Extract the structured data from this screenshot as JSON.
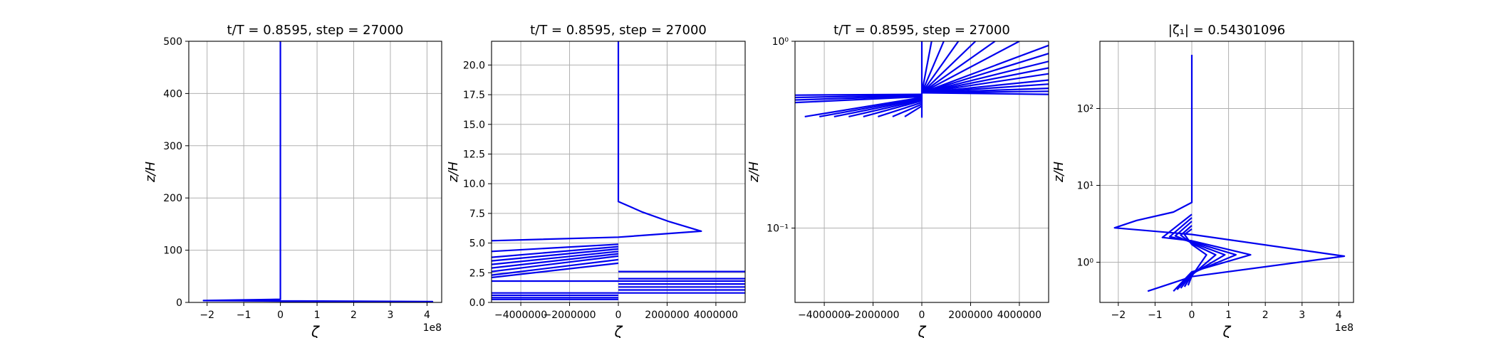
{
  "colors": {
    "line": "#0000ee",
    "grid": "#b0b0b0",
    "axis": "#000000"
  },
  "chart_data": [
    {
      "type": "line",
      "title": "t/T = 0.8595, step = 27000",
      "xlabel": "ζ",
      "ylabel": "z/H",
      "xscale": "linear",
      "yscale": "linear",
      "xlim": [
        -250000000.0,
        440000000.0
      ],
      "ylim": [
        0,
        500
      ],
      "xticks": [
        -200000000.0,
        -100000000.0,
        0,
        100000000.0,
        200000000.0,
        300000000.0,
        400000000.0
      ],
      "xtick_labels": [
        "−2",
        "−1",
        "0",
        "1",
        "2",
        "3",
        "4"
      ],
      "yticks": [
        0,
        100,
        200,
        300,
        400,
        500
      ],
      "ytick_labels": [
        "0",
        "100",
        "200",
        "300",
        "400",
        "500"
      ],
      "offset_text": "1e8",
      "grid": true,
      "series": [
        {
          "x": [
            0,
            0,
            -210000000.0,
            0,
            415000000.0,
            0
          ],
          "y": [
            500,
            6,
            3.5,
            3,
            1.5,
            0.5
          ]
        },
        {
          "x": [
            0,
            -100000000.0,
            0,
            150000000.0,
            0
          ],
          "y": [
            4,
            3.2,
            2.6,
            1.6,
            0.4
          ]
        }
      ]
    },
    {
      "type": "line",
      "title": "t/T = 0.8595, step = 27000",
      "xlabel": "ζ",
      "ylabel": "z/H",
      "xscale": "linear",
      "yscale": "linear",
      "xlim": [
        -5200000,
        5200000
      ],
      "ylim": [
        0,
        22
      ],
      "xticks": [
        -4000000,
        -2000000,
        0,
        2000000,
        4000000
      ],
      "xtick_labels": [
        "−4000000",
        "−2000000",
        "0",
        "2000000",
        "4000000"
      ],
      "yticks": [
        0,
        2.5,
        5,
        7.5,
        10,
        12.5,
        15,
        17.5,
        20
      ],
      "ytick_labels": [
        "0.0",
        "2.5",
        "5.0",
        "7.5",
        "10.0",
        "12.5",
        "15.0",
        "17.5",
        "20.0"
      ],
      "grid": true,
      "series": [
        {
          "x": [
            0,
            0,
            0,
            0,
            1000000,
            2100000,
            3400000,
            0,
            -5200000
          ],
          "y": [
            22,
            10,
            9,
            8.5,
            7.6,
            6.8,
            6.0,
            5.5,
            5.2
          ]
        },
        {
          "x": [
            0,
            -5200000
          ],
          "y": [
            4.9,
            4.3
          ]
        },
        {
          "x": [
            0,
            -5200000
          ],
          "y": [
            4.7,
            3.8
          ]
        },
        {
          "x": [
            0,
            -5200000
          ],
          "y": [
            4.5,
            3.5
          ]
        },
        {
          "x": [
            0,
            -5200000
          ],
          "y": [
            4.3,
            3.2
          ]
        },
        {
          "x": [
            0,
            -5200000
          ],
          "y": [
            4.1,
            2.9
          ]
        },
        {
          "x": [
            0,
            -5200000
          ],
          "y": [
            3.9,
            2.6
          ]
        },
        {
          "x": [
            0,
            -5200000
          ],
          "y": [
            3.6,
            2.3
          ]
        },
        {
          "x": [
            0,
            -5200000
          ],
          "y": [
            3.3,
            2.1
          ]
        },
        {
          "x": [
            0,
            5200000
          ],
          "y": [
            2.6,
            2.6
          ]
        },
        {
          "x": [
            0,
            5200000
          ],
          "y": [
            2.0,
            2.0
          ]
        },
        {
          "x": [
            -5200000,
            5200000
          ],
          "y": [
            1.8,
            1.8
          ]
        },
        {
          "x": [
            0,
            5200000
          ],
          "y": [
            1.55,
            1.55
          ]
        },
        {
          "x": [
            0,
            5200000
          ],
          "y": [
            1.3,
            1.3
          ]
        },
        {
          "x": [
            0,
            5200000
          ],
          "y": [
            1.05,
            1.05
          ]
        },
        {
          "x": [
            -5200000,
            5200000
          ],
          "y": [
            0.8,
            0.8
          ]
        },
        {
          "x": [
            -5200000,
            0
          ],
          "y": [
            0.6,
            0.6
          ]
        },
        {
          "x": [
            -5200000,
            0
          ],
          "y": [
            0.4,
            0.4
          ]
        },
        {
          "x": [
            -5200000,
            0
          ],
          "y": [
            0.25,
            0.25
          ]
        }
      ]
    },
    {
      "type": "line",
      "title": "t/T = 0.8595, step = 27000",
      "xlabel": "ζ",
      "ylabel": "z/H",
      "xscale": "linear",
      "yscale": "log",
      "xlim": [
        -5200000,
        5200000
      ],
      "ylim": [
        0.04,
        1
      ],
      "xticks": [
        -4000000,
        -2000000,
        0,
        2000000,
        4000000
      ],
      "xtick_labels": [
        "−4000000",
        "−2000000",
        "0",
        "2000000",
        "4000000"
      ],
      "yticks": [
        0.1,
        1
      ],
      "ytick_labels": [
        "10⁻¹",
        "10⁰"
      ],
      "grid": true,
      "series": [
        {
          "x": [
            0,
            0
          ],
          "y": [
            0.39,
            1
          ]
        },
        {
          "x": [
            0,
            -5200000
          ],
          "y": [
            0.52,
            0.515
          ]
        },
        {
          "x": [
            0,
            -5200000
          ],
          "y": [
            0.515,
            0.5
          ]
        },
        {
          "x": [
            0,
            -5200000
          ],
          "y": [
            0.51,
            0.485
          ]
        },
        {
          "x": [
            0,
            -5200000
          ],
          "y": [
            0.505,
            0.47
          ]
        },
        {
          "x": [
            0,
            -4800000
          ],
          "y": [
            0.5,
            0.395
          ]
        },
        {
          "x": [
            0,
            -4200000
          ],
          "y": [
            0.495,
            0.395
          ]
        },
        {
          "x": [
            0,
            -3600000
          ],
          "y": [
            0.49,
            0.395
          ]
        },
        {
          "x": [
            0,
            -3000000
          ],
          "y": [
            0.485,
            0.395
          ]
        },
        {
          "x": [
            0,
            -2400000
          ],
          "y": [
            0.48,
            0.395
          ]
        },
        {
          "x": [
            0,
            -1800000
          ],
          "y": [
            0.47,
            0.395
          ]
        },
        {
          "x": [
            0,
            -1200000
          ],
          "y": [
            0.46,
            0.395
          ]
        },
        {
          "x": [
            0,
            -700000
          ],
          "y": [
            0.45,
            0.395
          ]
        },
        {
          "x": [
            0,
            5200000
          ],
          "y": [
            0.53,
            0.52
          ]
        },
        {
          "x": [
            0,
            5200000
          ],
          "y": [
            0.53,
            0.54
          ]
        },
        {
          "x": [
            0,
            5200000
          ],
          "y": [
            0.53,
            0.56
          ]
        },
        {
          "x": [
            0,
            5200000
          ],
          "y": [
            0.53,
            0.59
          ]
        },
        {
          "x": [
            0,
            5200000
          ],
          "y": [
            0.53,
            0.62
          ]
        },
        {
          "x": [
            0,
            5200000
          ],
          "y": [
            0.53,
            0.67
          ]
        },
        {
          "x": [
            0,
            5200000
          ],
          "y": [
            0.53,
            0.72
          ]
        },
        {
          "x": [
            0,
            5200000
          ],
          "y": [
            0.53,
            0.78
          ]
        },
        {
          "x": [
            0,
            5200000
          ],
          "y": [
            0.53,
            0.86
          ]
        },
        {
          "x": [
            0,
            5200000
          ],
          "y": [
            0.53,
            0.95
          ]
        },
        {
          "x": [
            0,
            4000000
          ],
          "y": [
            0.53,
            1
          ]
        },
        {
          "x": [
            0,
            3000000
          ],
          "y": [
            0.53,
            1
          ]
        },
        {
          "x": [
            0,
            2200000
          ],
          "y": [
            0.53,
            1
          ]
        },
        {
          "x": [
            0,
            1500000
          ],
          "y": [
            0.53,
            1
          ]
        },
        {
          "x": [
            0,
            900000
          ],
          "y": [
            0.53,
            1
          ]
        },
        {
          "x": [
            0,
            400000
          ],
          "y": [
            0.53,
            1
          ]
        }
      ]
    },
    {
      "type": "line",
      "title": "|ζ₁| = 0.54301096",
      "xlabel": "ζ",
      "ylabel": "z/H",
      "xscale": "linear",
      "yscale": "log",
      "xlim": [
        -250000000.0,
        440000000.0
      ],
      "ylim": [
        0.3,
        750
      ],
      "xticks": [
        -200000000.0,
        -100000000.0,
        0,
        100000000.0,
        200000000.0,
        300000000.0,
        400000000.0
      ],
      "xtick_labels": [
        "−2",
        "−1",
        "0",
        "1",
        "2",
        "3",
        "4"
      ],
      "yticks": [
        1,
        10,
        100
      ],
      "ytick_labels": [
        "10⁰",
        "10¹",
        "10²"
      ],
      "offset_text": "1e8",
      "grid": true,
      "series": [
        {
          "x": [
            0,
            0,
            -50000000.0,
            -150000000.0,
            -210000000.0,
            0,
            415000000.0,
            0,
            -120000000.0
          ],
          "y": [
            500,
            6,
            4.5,
            3.5,
            2.8,
            2.3,
            1.2,
            0.65,
            0.42
          ]
        },
        {
          "x": [
            0,
            -80000000.0,
            0,
            160000000.0,
            0,
            -50000000.0
          ],
          "y": [
            4.2,
            2.1,
            1.9,
            1.25,
            0.75,
            0.42
          ]
        },
        {
          "x": [
            0,
            -60000000.0,
            0,
            120000000.0,
            0,
            -40000000.0
          ],
          "y": [
            3.8,
            2.15,
            1.85,
            1.25,
            0.72,
            0.44
          ]
        },
        {
          "x": [
            0,
            -45000000.0,
            0,
            90000000.0,
            0,
            -30000000.0
          ],
          "y": [
            3.4,
            2.2,
            1.8,
            1.25,
            0.7,
            0.46
          ]
        },
        {
          "x": [
            0,
            -30000000.0,
            0,
            65000000.0,
            0,
            -20000000.0
          ],
          "y": [
            3.0,
            2.25,
            1.75,
            1.25,
            0.68,
            0.48
          ]
        },
        {
          "x": [
            0,
            -20000000.0,
            0,
            40000000.0,
            0,
            -10000000.0
          ],
          "y": [
            2.7,
            2.3,
            1.7,
            1.25,
            0.66,
            0.5
          ]
        }
      ]
    }
  ]
}
